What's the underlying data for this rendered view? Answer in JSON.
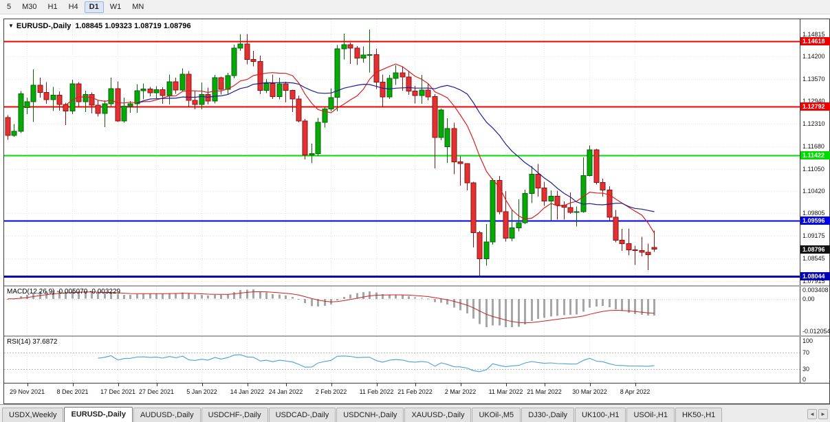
{
  "toolbar": {
    "timeframes": [
      "5",
      "M30",
      "H1",
      "H4",
      "D1",
      "W1",
      "MN"
    ],
    "active": "D1"
  },
  "chart_data": {
    "type": "candlestick",
    "title": {
      "symbol": "EURUSD-,Daily",
      "ohlc": "1.08845 1.09323 1.08719 1.08796"
    },
    "colors": {
      "up": "#07a807",
      "up_stroke": "#056405",
      "down": "#e03232",
      "down_stroke": "#8f1111",
      "ma_fast": "#d42020",
      "ma_slow": "#1c1c96",
      "macd_hist": "#a6a6a6",
      "macd_signal": "#cc2020",
      "rsi": "#4aa0d8",
      "grid": "#e4e4e4"
    },
    "slots": 123,
    "price_axis": {
      "min": 1.0779,
      "max": 1.1524,
      "labels": [
        "1.14815",
        "1.14200",
        "1.13570",
        "1.12940",
        "1.12310",
        "1.11680",
        "1.11050",
        "1.10420",
        "1.09805",
        "1.09175",
        "1.08545",
        "1.07915"
      ]
    },
    "levels": [
      {
        "label": "1.14618",
        "price": 1.14618,
        "color": "#ee0000",
        "width": 2
      },
      {
        "label": "1.12792",
        "price": 1.12792,
        "color": "#ee0000",
        "width": 2
      },
      {
        "label": "1.11422",
        "price": 1.11422,
        "color": "#00dc00",
        "width": 2
      },
      {
        "label": "1.09596",
        "price": 1.09596,
        "color": "#0000e8",
        "width": 2
      },
      {
        "label": "1.08044",
        "price": 1.08044,
        "color": "#0000b4",
        "width": 3
      }
    ],
    "current_price": {
      "label": "1.08796",
      "price": 1.08796,
      "bg": "#111111"
    },
    "date_labels": [
      {
        "text": "29 Nov 2021",
        "i": 3
      },
      {
        "text": "8 Dec 2021",
        "i": 10
      },
      {
        "text": "17 Dec 2021",
        "i": 17
      },
      {
        "text": "27 Dec 2021",
        "i": 23
      },
      {
        "text": "5 Jan 2022",
        "i": 30
      },
      {
        "text": "14 Jan 2022",
        "i": 37
      },
      {
        "text": "24 Jan 2022",
        "i": 43
      },
      {
        "text": "2 Feb 2022",
        "i": 50
      },
      {
        "text": "11 Feb 2022",
        "i": 57
      },
      {
        "text": "21 Feb 2022",
        "i": 63
      },
      {
        "text": "2 Mar 2022",
        "i": 70
      },
      {
        "text": "11 Mar 2022",
        "i": 77
      },
      {
        "text": "21 Mar 2022",
        "i": 83
      },
      {
        "text": "30 Mar 2022",
        "i": 90
      },
      {
        "text": "8 Apr 2022",
        "i": 97
      }
    ],
    "candles": [
      [
        1.1249,
        1.1255,
        1.1186,
        1.1199
      ],
      [
        1.1199,
        1.123,
        1.1195,
        1.121
      ],
      [
        1.121,
        1.1323,
        1.1205,
        1.1315
      ],
      [
        1.1277,
        1.1305,
        1.1258,
        1.1293
      ],
      [
        1.1293,
        1.1383,
        1.1236,
        1.1339
      ],
      [
        1.1339,
        1.136,
        1.1305,
        1.1319
      ],
      [
        1.1319,
        1.1348,
        1.1287,
        1.1299
      ],
      [
        1.1299,
        1.1334,
        1.1267,
        1.1311
      ],
      [
        1.1311,
        1.1322,
        1.1268,
        1.1285
      ],
      [
        1.1285,
        1.129,
        1.1228,
        1.1267
      ],
      [
        1.1267,
        1.1355,
        1.1258,
        1.1343
      ],
      [
        1.1343,
        1.1348,
        1.128,
        1.1293
      ],
      [
        1.1293,
        1.1324,
        1.1264,
        1.1313
      ],
      [
        1.1313,
        1.1319,
        1.126,
        1.1283
      ],
      [
        1.1283,
        1.1298,
        1.1252,
        1.126
      ],
      [
        1.126,
        1.1297,
        1.1222,
        1.1287
      ],
      [
        1.1287,
        1.136,
        1.128,
        1.133
      ],
      [
        1.133,
        1.135,
        1.1236,
        1.1239
      ],
      [
        1.1239,
        1.1305,
        1.1234,
        1.128
      ],
      [
        1.128,
        1.1295,
        1.1262,
        1.1287
      ],
      [
        1.1287,
        1.1342,
        1.1262,
        1.1324
      ],
      [
        1.1324,
        1.1344,
        1.13,
        1.1329
      ],
      [
        1.1329,
        1.1334,
        1.1308,
        1.1318
      ],
      [
        1.1318,
        1.1336,
        1.1302,
        1.1327
      ],
      [
        1.1327,
        1.1333,
        1.1287,
        1.131
      ],
      [
        1.131,
        1.1369,
        1.1285,
        1.1349
      ],
      [
        1.1349,
        1.136,
        1.1315,
        1.1326
      ],
      [
        1.1326,
        1.1386,
        1.1321,
        1.137
      ],
      [
        1.137,
        1.1379,
        1.1279,
        1.1297
      ],
      [
        1.1297,
        1.1323,
        1.1272,
        1.1285
      ],
      [
        1.1285,
        1.1347,
        1.1272,
        1.1313
      ],
      [
        1.1313,
        1.1332,
        1.1285,
        1.1295
      ],
      [
        1.1295,
        1.1368,
        1.1288,
        1.136
      ],
      [
        1.136,
        1.1363,
        1.1313,
        1.1328
      ],
      [
        1.1328,
        1.1374,
        1.1314,
        1.1366
      ],
      [
        1.1366,
        1.1453,
        1.1358,
        1.1443
      ],
      [
        1.1443,
        1.1482,
        1.1435,
        1.1455
      ],
      [
        1.1455,
        1.1483,
        1.1398,
        1.1411
      ],
      [
        1.1411,
        1.1435,
        1.1392,
        1.1406
      ],
      [
        1.1406,
        1.1422,
        1.1314,
        1.1325
      ],
      [
        1.1325,
        1.1357,
        1.1317,
        1.1344
      ],
      [
        1.1344,
        1.1369,
        1.1301,
        1.1307
      ],
      [
        1.1307,
        1.136,
        1.13,
        1.1343
      ],
      [
        1.1343,
        1.1349,
        1.1291,
        1.1325
      ],
      [
        1.1325,
        1.1327,
        1.1264,
        1.1301
      ],
      [
        1.1301,
        1.131,
        1.1235,
        1.1239
      ],
      [
        1.1239,
        1.1245,
        1.1131,
        1.1144
      ],
      [
        1.1144,
        1.1176,
        1.1121,
        1.1148
      ],
      [
        1.1148,
        1.1248,
        1.1141,
        1.1235
      ],
      [
        1.1235,
        1.1279,
        1.1221,
        1.1273
      ],
      [
        1.1273,
        1.1331,
        1.1266,
        1.1305
      ],
      [
        1.1305,
        1.1452,
        1.1266,
        1.1441
      ],
      [
        1.1441,
        1.1484,
        1.1411,
        1.1453
      ],
      [
        1.1453,
        1.1459,
        1.1399,
        1.1443
      ],
      [
        1.1443,
        1.1449,
        1.1396,
        1.1415
      ],
      [
        1.1415,
        1.1448,
        1.1403,
        1.1424
      ],
      [
        1.1424,
        1.1495,
        1.1375,
        1.1425
      ],
      [
        1.1425,
        1.1441,
        1.1329,
        1.1348
      ],
      [
        1.1348,
        1.1369,
        1.1278,
        1.1306
      ],
      [
        1.1306,
        1.1368,
        1.1301,
        1.1358
      ],
      [
        1.1358,
        1.1395,
        1.134,
        1.1374
      ],
      [
        1.1374,
        1.1392,
        1.1324,
        1.1362
      ],
      [
        1.1362,
        1.138,
        1.1312,
        1.1323
      ],
      [
        1.1323,
        1.1337,
        1.1288,
        1.131
      ],
      [
        1.131,
        1.1368,
        1.1287,
        1.1326
      ],
      [
        1.1326,
        1.1344,
        1.1297,
        1.1307
      ],
      [
        1.1307,
        1.1314,
        1.1106,
        1.1193
      ],
      [
        1.1193,
        1.1274,
        1.1185,
        1.127
      ],
      [
        1.1167,
        1.1247,
        1.1122,
        1.1218
      ],
      [
        1.1218,
        1.1234,
        1.109,
        1.1125
      ],
      [
        1.1125,
        1.114,
        1.1058,
        1.112
      ],
      [
        1.112,
        1.1121,
        1.1045,
        1.1066
      ],
      [
        1.1066,
        1.1069,
        1.0885,
        1.0926
      ],
      [
        1.0926,
        1.0931,
        1.0806,
        1.0853
      ],
      [
        1.0853,
        1.095,
        1.0834,
        1.09
      ],
      [
        1.09,
        1.1078,
        1.0893,
        1.1073
      ],
      [
        1.1073,
        1.1085,
        1.0977,
        1.0985
      ],
      [
        1.0985,
        1.1043,
        1.0901,
        1.0911
      ],
      [
        1.0911,
        1.0992,
        1.0902,
        1.094
      ],
      [
        1.094,
        1.102,
        1.093,
        1.0954
      ],
      [
        1.0954,
        1.1047,
        1.095,
        1.1036
      ],
      [
        1.1036,
        1.1113,
        1.1009,
        1.109
      ],
      [
        1.109,
        1.1119,
        1.1027,
        1.1051
      ],
      [
        1.1051,
        1.1069,
        1.1001,
        1.1015
      ],
      [
        1.1015,
        1.1045,
        1.0961,
        1.1028
      ],
      [
        1.1028,
        1.1044,
        1.0963,
        1.1003
      ],
      [
        1.1003,
        1.1014,
        1.0963,
        1.0997
      ],
      [
        1.0997,
        1.1039,
        1.0979,
        1.0983
      ],
      [
        1.0983,
        1.0999,
        1.0944,
        1.0985
      ],
      [
        1.0985,
        1.1137,
        1.0982,
        1.1086
      ],
      [
        1.1086,
        1.1171,
        1.1084,
        1.1158
      ],
      [
        1.1158,
        1.1161,
        1.1061,
        1.1067
      ],
      [
        1.1067,
        1.1077,
        1.1027,
        1.1046
      ],
      [
        1.1046,
        1.1056,
        1.096,
        1.097
      ],
      [
        1.097,
        1.099,
        1.0899,
        1.0905
      ],
      [
        1.0905,
        1.0937,
        1.0875,
        1.0895
      ],
      [
        1.0895,
        1.0938,
        1.0863,
        1.0878
      ],
      [
        1.0878,
        1.089,
        1.0836,
        1.0876
      ],
      [
        1.0876,
        1.0915,
        1.086,
        1.0871
      ],
      [
        1.0871,
        1.0895,
        1.0821,
        1.0865
      ],
      [
        1.08845,
        1.09323,
        1.08719,
        1.08796
      ]
    ],
    "indicators": {
      "moving_averages": [
        {
          "period": 10,
          "color_key": "ma_fast"
        },
        {
          "period": 21,
          "color_key": "ma_slow"
        }
      ],
      "macd": {
        "label": "MACD(12,26,9) -0.005070 -0.003229",
        "fast": 12,
        "slow": 26,
        "signal": 9,
        "range": [
          -0.0135,
          0.0045
        ],
        "axis": [
          {
            "v": 0.003408,
            "t": "0.003408"
          },
          {
            "v": 0,
            "t": "0.00"
          },
          {
            "v": -0.012054,
            "t": "-0.012054"
          }
        ]
      },
      "rsi": {
        "label": "RSI(14) 37.6872",
        "period": 14,
        "range": [
          -5,
          110
        ],
        "levels": [
          70,
          30
        ],
        "axis": [
          {
            "v": 100,
            "t": "100"
          },
          {
            "v": 70,
            "t": "70"
          },
          {
            "v": 30,
            "t": "30"
          },
          {
            "v": 0,
            "t": "0"
          }
        ]
      }
    }
  },
  "tabs": {
    "items": [
      "USDX,Weekly",
      "EURUSD-,Daily",
      "AUDUSD-,Daily",
      "USDCHF-,Daily",
      "USDCAD-,Daily",
      "USDCNH-,Daily",
      "XAUUSD-,Daily",
      "UKOil-,M5",
      "DJ30-,Daily",
      "UK100-,H1",
      "USOil-,H1",
      "HK50-,H1"
    ],
    "active": "EURUSD-,Daily"
  }
}
